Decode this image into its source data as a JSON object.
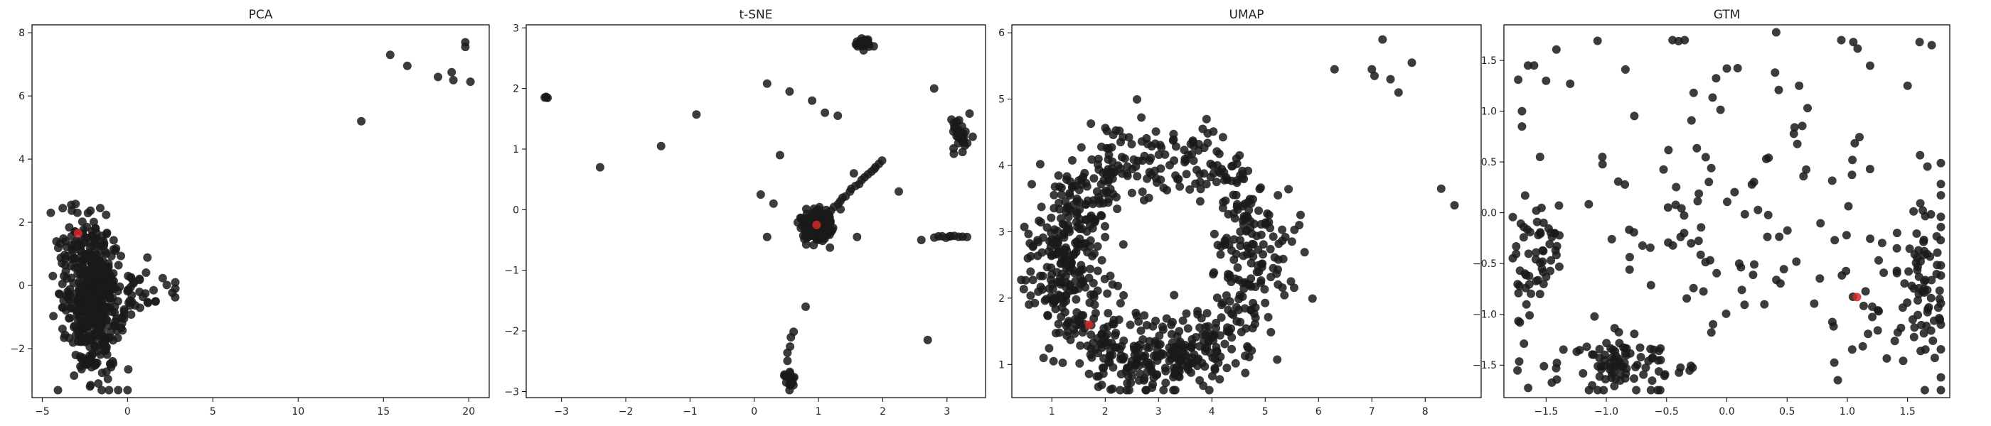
{
  "figure": {
    "background": "#ffffff"
  },
  "style": {
    "point_color": "#1a1a1a",
    "highlight_color": "#d62728",
    "axis_color": "#000000"
  },
  "chart_data": [
    {
      "type": "scatter",
      "title": "PCA",
      "xlim": [
        -5.6,
        21.2
      ],
      "ylim": [
        -3.55,
        8.25
      ],
      "xticks": [
        -5,
        0,
        5,
        10,
        15,
        20
      ],
      "yticks": [
        -2,
        0,
        2,
        4,
        6,
        8
      ],
      "highlight": [
        [
          -2.9,
          1.65
        ]
      ],
      "clusters": [
        {
          "cx": -2.0,
          "cy": -0.6,
          "sx": 0.9,
          "sy": 1.1,
          "n": 420,
          "seed": 11
        },
        {
          "cx": -2.6,
          "cy": 1.0,
          "sx": 0.8,
          "sy": 0.6,
          "n": 70,
          "seed": 12
        },
        {
          "cx": 0.8,
          "cy": -0.3,
          "sx": 1.0,
          "sy": 0.4,
          "n": 30,
          "seed": 13
        }
      ],
      "points": [
        [
          13.7,
          5.2
        ],
        [
          15.4,
          7.3
        ],
        [
          16.4,
          6.95
        ],
        [
          18.2,
          6.6
        ],
        [
          19.0,
          6.75
        ],
        [
          19.1,
          6.5
        ],
        [
          19.8,
          7.55
        ],
        [
          19.8,
          7.7
        ],
        [
          20.1,
          6.45
        ],
        [
          -3.8,
          2.45
        ],
        [
          -3.3,
          2.55
        ],
        [
          -1.6,
          2.45
        ],
        [
          -4.5,
          2.3
        ],
        [
          2.8,
          0.1
        ],
        [
          2.8,
          -0.1
        ],
        [
          -2.2,
          -3.2
        ]
      ]
    },
    {
      "type": "scatter",
      "title": "t-SNE",
      "xlim": [
        -3.55,
        3.6
      ],
      "ylim": [
        -3.1,
        3.05
      ],
      "xticks": [
        -3,
        -2,
        -1,
        0,
        1,
        2,
        3
      ],
      "yticks": [
        -3,
        -2,
        -1,
        0,
        1,
        2,
        3
      ],
      "highlight": [
        [
          0.97,
          -0.25
        ]
      ],
      "clusters": [
        {
          "cx": 0.95,
          "cy": -0.25,
          "sx": 0.12,
          "sy": 0.12,
          "n": 200,
          "seed": 21
        },
        {
          "cx": 1.7,
          "cy": 2.75,
          "sx": 0.05,
          "sy": 0.05,
          "n": 25,
          "seed": 22
        },
        {
          "cx": 3.2,
          "cy": 1.2,
          "sx": 0.07,
          "sy": 0.15,
          "n": 30,
          "seed": 23
        },
        {
          "cx": 0.55,
          "cy": -2.8,
          "sx": 0.04,
          "sy": 0.07,
          "n": 20,
          "seed": 24
        },
        {
          "cx": -3.25,
          "cy": 1.85,
          "sx": 0.02,
          "sy": 0.02,
          "n": 4,
          "seed": 25
        }
      ],
      "lines": [
        {
          "from": [
            1.2,
            0.0
          ],
          "to": [
            2.0,
            0.8
          ],
          "n": 18,
          "seed": 26
        },
        {
          "from": [
            2.8,
            -0.45
          ],
          "to": [
            3.3,
            -0.45
          ],
          "n": 10,
          "seed": 27
        },
        {
          "from": [
            0.6,
            -2.0
          ],
          "to": [
            0.5,
            -2.5
          ],
          "n": 5,
          "seed": 28
        }
      ],
      "points": [
        [
          -2.4,
          0.7
        ],
        [
          -1.45,
          1.05
        ],
        [
          -0.9,
          1.57
        ],
        [
          0.2,
          2.08
        ],
        [
          0.55,
          1.95
        ],
        [
          0.9,
          1.8
        ],
        [
          1.1,
          1.6
        ],
        [
          1.3,
          1.55
        ],
        [
          2.8,
          2.0
        ],
        [
          0.1,
          0.25
        ],
        [
          0.3,
          0.1
        ],
        [
          0.2,
          -0.45
        ],
        [
          0.8,
          -1.6
        ],
        [
          0.4,
          0.9
        ],
        [
          1.55,
          0.6
        ],
        [
          2.25,
          0.3
        ],
        [
          2.6,
          -0.5
        ],
        [
          2.7,
          -2.15
        ],
        [
          1.6,
          -0.45
        ]
      ]
    },
    {
      "type": "scatter",
      "title": "UMAP",
      "xlim": [
        0.25,
        9.05
      ],
      "ylim": [
        0.5,
        6.12
      ],
      "xticks": [
        1,
        2,
        3,
        4,
        5,
        6,
        7,
        8
      ],
      "yticks": [
        1,
        2,
        3,
        4,
        5,
        6
      ],
      "highlight": [
        [
          1.7,
          1.6
        ]
      ],
      "clusters": [
        {
          "ring": true,
          "cx": 3.0,
          "cy": 2.6,
          "rx": 1.9,
          "ry": 1.6,
          "spread": 0.35,
          "n": 650,
          "seed": 31
        },
        {
          "cx": 1.5,
          "cy": 2.8,
          "sx": 0.4,
          "sy": 0.5,
          "n": 120,
          "seed": 32
        },
        {
          "cx": 3.0,
          "cy": 1.2,
          "sx": 0.6,
          "sy": 0.3,
          "n": 80,
          "seed": 33
        }
      ],
      "points": [
        [
          6.3,
          5.45
        ],
        [
          7.0,
          5.45
        ],
        [
          7.05,
          5.35
        ],
        [
          7.2,
          5.9
        ],
        [
          7.35,
          5.3
        ],
        [
          7.5,
          5.1
        ],
        [
          7.75,
          5.55
        ],
        [
          8.3,
          3.65
        ],
        [
          8.55,
          3.4
        ],
        [
          3.9,
          4.7
        ],
        [
          0.55,
          2.6
        ],
        [
          0.6,
          2.4
        ],
        [
          5.15,
          2.45
        ]
      ]
    },
    {
      "type": "scatter",
      "title": "GTM",
      "xlim": [
        -1.85,
        1.85
      ],
      "ylim": [
        -1.82,
        1.85
      ],
      "xticks": [
        -1.5,
        -1.0,
        -0.5,
        0.0,
        0.5,
        1.0,
        1.5
      ],
      "xticklabels": [
        "−1.5",
        "−1.0",
        "−0.5",
        "0.0",
        "0.5",
        "1.0",
        "1.5"
      ],
      "yticks": [
        -1.5,
        -1.0,
        -0.5,
        0.0,
        0.5,
        1.0,
        1.5
      ],
      "yticklabels": [
        "−1.5",
        "−1.0",
        "−0.5",
        "0.0",
        "0.5",
        "1.0",
        "1.5"
      ],
      "highlight": [
        [
          1.08,
          -0.83
        ]
      ],
      "clusters": [
        {
          "cx": -1.55,
          "cy": -0.3,
          "sx": 0.12,
          "sy": 0.2,
          "n": 45,
          "seed": 41
        },
        {
          "cx": -0.9,
          "cy": -1.5,
          "sx": 0.25,
          "sy": 0.15,
          "n": 90,
          "seed": 42
        },
        {
          "cx": 1.65,
          "cy": -0.55,
          "sx": 0.08,
          "sy": 0.5,
          "n": 70,
          "seed": 43
        },
        {
          "cx": 1.3,
          "cy": -0.9,
          "sx": 0.25,
          "sy": 0.35,
          "n": 40,
          "seed": 44
        },
        {
          "cx": -0.2,
          "cy": -0.5,
          "sx": 0.45,
          "sy": 0.5,
          "n": 50,
          "seed": 45
        },
        {
          "cx": 0.3,
          "cy": 0.8,
          "sx": 0.9,
          "sy": 0.6,
          "n": 55,
          "seed": 46
        },
        {
          "cx": -1.7,
          "cy": -0.9,
          "sx": 0.05,
          "sy": 0.25,
          "n": 15,
          "seed": 47
        }
      ],
      "points": [
        [
          -0.45,
          1.7
        ],
        [
          -0.4,
          1.69
        ],
        [
          -0.35,
          1.7
        ],
        [
          0.95,
          1.7
        ],
        [
          1.05,
          1.68
        ],
        [
          1.6,
          1.68
        ],
        [
          1.7,
          1.65
        ],
        [
          -1.65,
          1.45
        ],
        [
          -1.6,
          1.45
        ],
        [
          -1.5,
          1.3
        ],
        [
          -1.3,
          1.27
        ],
        [
          0.0,
          1.42
        ],
        [
          0.4,
          1.38
        ],
        [
          0.6,
          1.25
        ],
        [
          -1.7,
          1.0
        ],
        [
          -1.7,
          0.85
        ],
        [
          1.5,
          1.25
        ],
        [
          -1.55,
          -0.8
        ],
        [
          -1.55,
          0.55
        ]
      ]
    }
  ]
}
